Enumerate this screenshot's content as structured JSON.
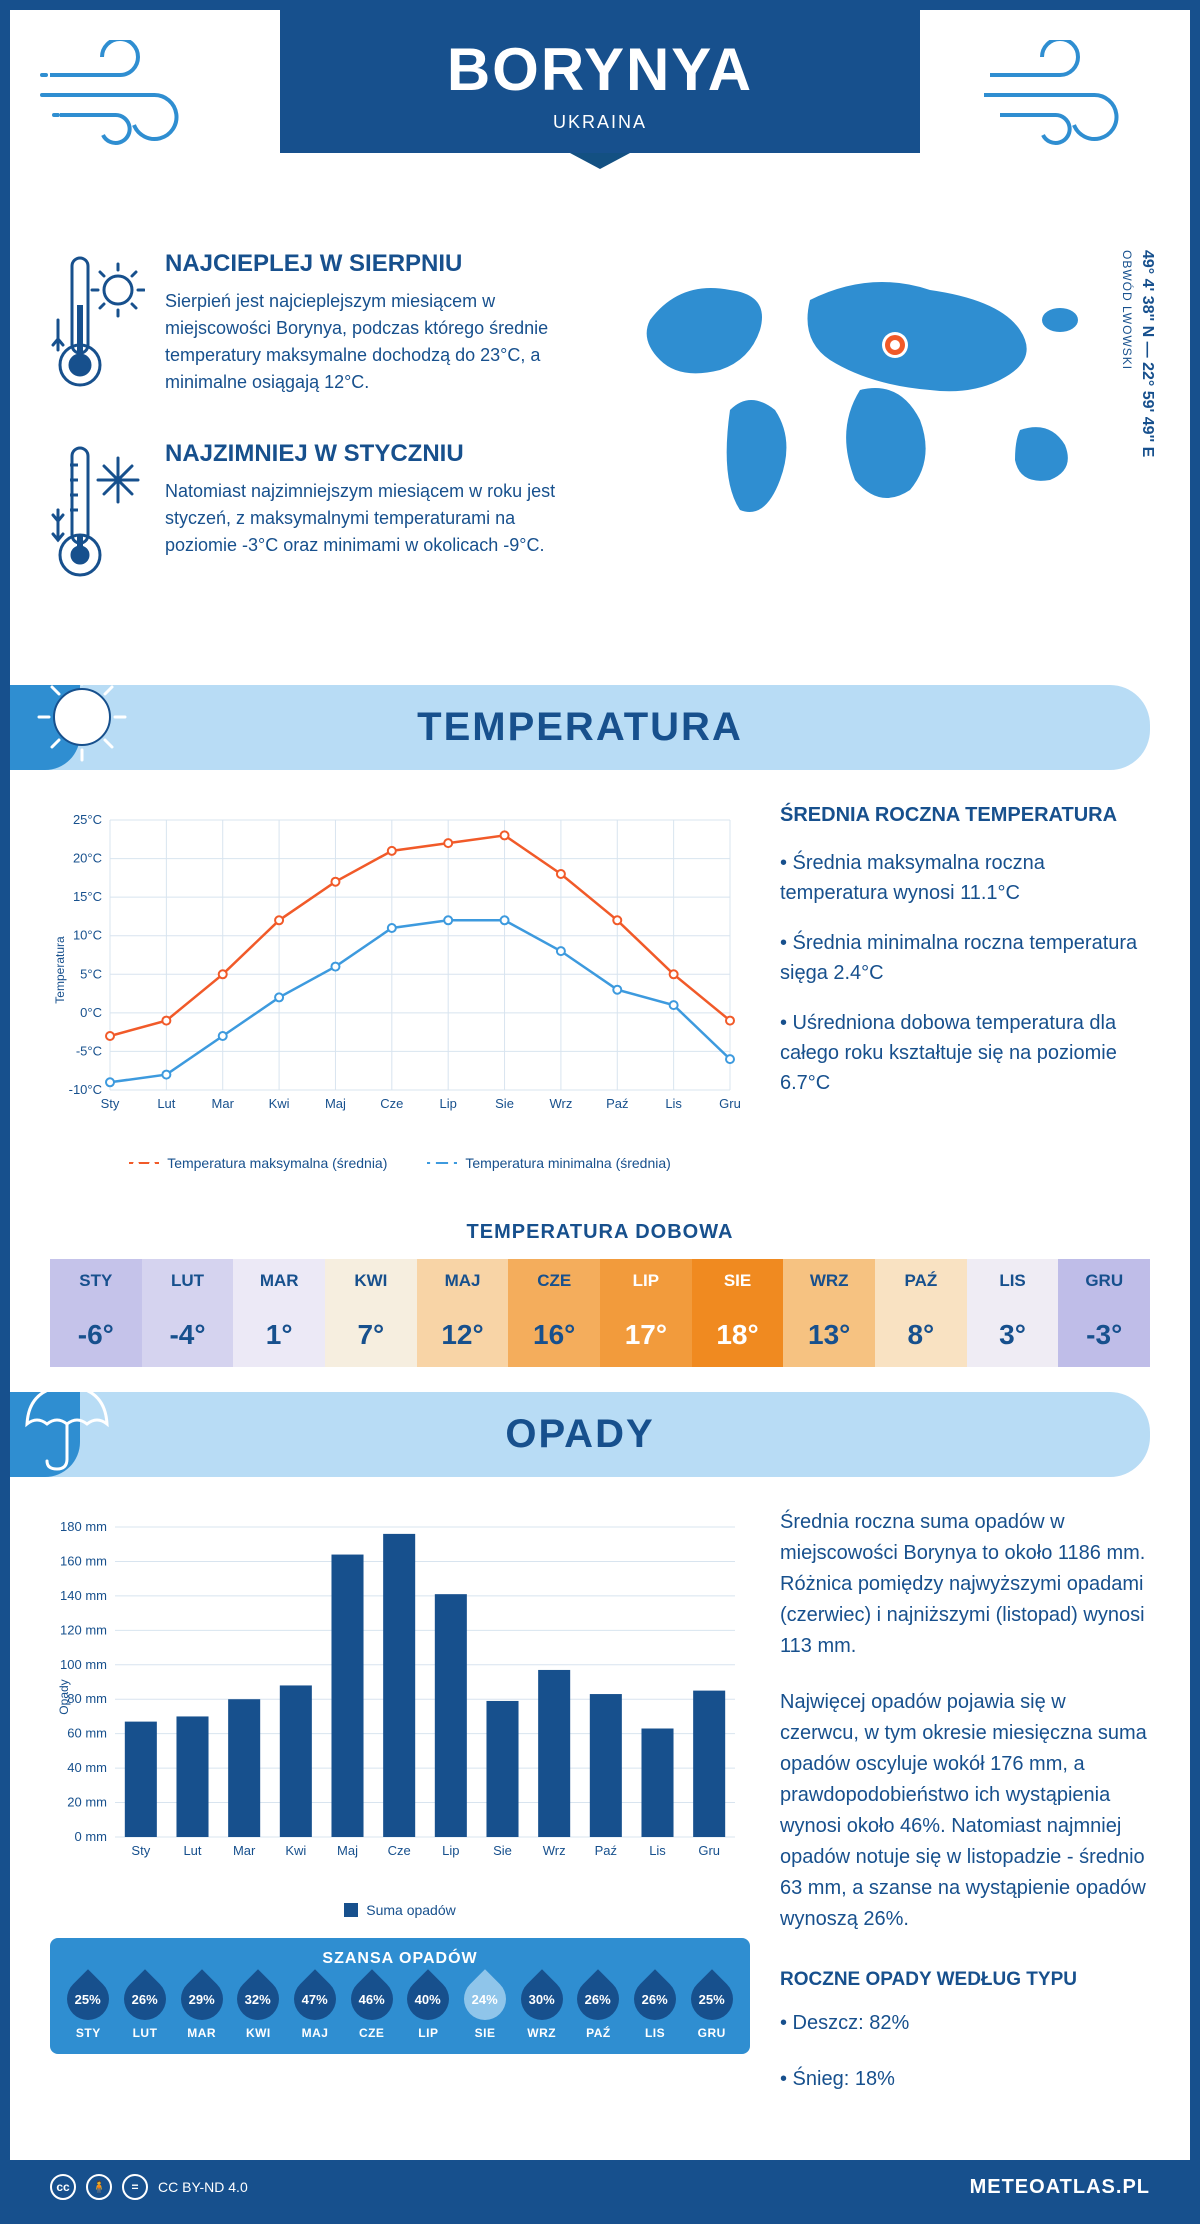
{
  "header": {
    "city": "BORYNYA",
    "country": "UKRAINA",
    "coords": "49° 4' 38'' N — 22° 59' 49'' E",
    "region": "OBWÓD LWOWSKI"
  },
  "intro": {
    "hot": {
      "title": "NAJCIEPLEJ W SIERPNIU",
      "text": "Sierpień jest najcieplejszym miesiącem w miejscowości Borynya, podczas którego średnie temperatury maksymalne dochodzą do 23°C, a minimalne osiągają 12°C."
    },
    "cold": {
      "title": "NAJZIMNIEJ W STYCZNIU",
      "text": "Natomiast najzimniejszym miesiącem w roku jest styczeń, z maksymalnymi temperaturami na poziomie -3°C oraz minimami w okolicach -9°C."
    }
  },
  "sections": {
    "temp": "TEMPERATURA",
    "precip": "OPADY"
  },
  "temp_chart": {
    "type": "line",
    "months": [
      "Sty",
      "Lut",
      "Mar",
      "Kwi",
      "Maj",
      "Cze",
      "Lip",
      "Sie",
      "Wrz",
      "Paź",
      "Lis",
      "Gru"
    ],
    "ylim": [
      -10,
      25
    ],
    "ytick_step": 5,
    "y_unit": "°C",
    "y_axis_label": "Temperatura",
    "max_series": {
      "values": [
        -3,
        -1,
        5,
        12,
        17,
        21,
        22,
        23,
        18,
        12,
        5,
        -1
      ],
      "color": "#f15a29",
      "label": "Temperatura maksymalna (średnia)"
    },
    "min_series": {
      "values": [
        -9,
        -8,
        -3,
        2,
        6,
        11,
        12,
        12,
        8,
        3,
        1,
        -6
      ],
      "color": "#3d9ade",
      "label": "Temperatura minimalna (średnia)"
    },
    "grid_color": "#d8e4ef",
    "background": "#ffffff"
  },
  "temp_stats": {
    "title": "ŚREDNIA ROCZNA TEMPERATURA",
    "b1": "• Średnia maksymalna roczna temperatura wynosi 11.1°C",
    "b2": "• Średnia minimalna roczna temperatura sięga 2.4°C",
    "b3": "• Uśredniona dobowa temperatura dla całego roku kształtuje się na poziomie 6.7°C"
  },
  "daily_temp": {
    "title": "TEMPERATURA DOBOWA",
    "months": [
      "STY",
      "LUT",
      "MAR",
      "KWI",
      "MAJ",
      "CZE",
      "LIP",
      "SIE",
      "WRZ",
      "PAŹ",
      "LIS",
      "GRU"
    ],
    "values": [
      "-6°",
      "-4°",
      "1°",
      "7°",
      "12°",
      "16°",
      "17°",
      "18°",
      "13°",
      "8°",
      "3°",
      "-3°"
    ],
    "bg": [
      "#c5c3ea",
      "#d5d3ef",
      "#ece9f6",
      "#f6eedf",
      "#f8d4a6",
      "#f4ad5c",
      "#f29b3c",
      "#f08a20",
      "#f6c281",
      "#f9e2c2",
      "#efecf4",
      "#bfbde8"
    ],
    "fg": [
      "#17508d",
      "#17508d",
      "#17508d",
      "#17508d",
      "#17508d",
      "#17508d",
      "#ffffff",
      "#ffffff",
      "#17508d",
      "#17508d",
      "#17508d",
      "#17508d"
    ]
  },
  "precip_chart": {
    "type": "bar",
    "months": [
      "Sty",
      "Lut",
      "Mar",
      "Kwi",
      "Maj",
      "Cze",
      "Lip",
      "Sie",
      "Wrz",
      "Paź",
      "Lis",
      "Gru"
    ],
    "values": [
      67,
      70,
      80,
      88,
      164,
      176,
      141,
      79,
      97,
      83,
      63,
      85
    ],
    "ylim": [
      0,
      180
    ],
    "ytick_step": 20,
    "y_unit": " mm",
    "y_axis_label": "Opady",
    "bar_color": "#17508d",
    "legend": "Suma opadów",
    "grid_color": "#d8e4ef"
  },
  "precip_txt": {
    "p1": "Średnia roczna suma opadów w miejscowości Borynya to około 1186 mm. Różnica pomiędzy najwyższymi opadami (czerwiec) i najniższymi (listopad) wynosi 113 mm.",
    "p2": "Najwięcej opadów pojawia się w czerwcu, w tym okresie miesięczna suma opadów oscyluje wokół 176 mm, a prawdopodobieństwo ich wystąpienia wynosi około 46%. Natomiast najmniej opadów notuje się w listopadzie - średnio 63 mm, a szanse na wystąpienie opadów wynoszą 26%.",
    "by_type_title": "ROCZNE OPADY WEDŁUG TYPU",
    "by_type_1": "• Deszcz: 82%",
    "by_type_2": "• Śnieg: 18%"
  },
  "chance": {
    "title": "SZANSA OPADÓW",
    "months": [
      "STY",
      "LUT",
      "MAR",
      "KWI",
      "MAJ",
      "CZE",
      "LIP",
      "SIE",
      "WRZ",
      "PAŹ",
      "LIS",
      "GRU"
    ],
    "values": [
      "25%",
      "26%",
      "29%",
      "32%",
      "47%",
      "46%",
      "40%",
      "24%",
      "30%",
      "26%",
      "26%",
      "25%"
    ],
    "min_index": 7
  },
  "footer": {
    "license": "CC BY-ND 4.0",
    "brand": "METEOATLAS.PL"
  }
}
